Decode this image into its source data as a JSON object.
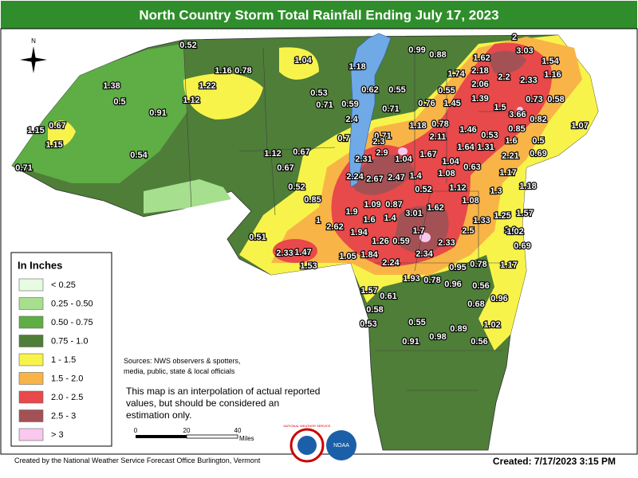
{
  "header": {
    "title": "North Country Storm Total Rainfall Ending July 17, 2023"
  },
  "map": {
    "compass": "N",
    "stations": [
      0.52,
      1.16,
      0.78,
      1.04,
      1.18,
      0.99,
      0.88,
      2,
      3.03,
      1.62,
      1.54,
      2.18,
      1.74,
      1.16,
      1.38,
      1.22,
      2.2,
      2.33,
      2.06,
      0.53,
      0.62,
      0.55,
      0.55,
      1.12,
      0.5,
      0.71,
      0.59,
      0.71,
      0.76,
      1.45,
      1.39,
      0.73,
      0.58,
      0.91,
      1.5,
      3.66,
      0.82,
      2.4,
      1.15,
      0.67,
      1.07,
      0.85,
      1.18,
      0.78,
      1.46,
      0.53,
      0.71,
      2.11,
      0.7,
      2.3,
      1.6,
      0.5,
      1.15,
      1.64,
      1.31,
      0.69,
      2.9,
      1.67,
      2.21,
      0.54,
      1.12,
      0.67,
      2.31,
      1.04,
      1.04,
      0.63,
      0.71,
      0.67,
      1.17,
      2.24,
      2.67,
      2.47,
      1.4,
      1.08,
      1.18,
      0.52,
      1.12,
      1.3,
      0.52,
      0.85,
      1.09,
      0.87,
      1.08,
      1.62,
      1.57,
      1.9,
      3.01,
      1.25,
      1,
      1.6,
      1.4,
      1.33,
      1.6,
      2.62,
      1.94,
      1.7,
      2.5,
      1.02,
      0.51,
      1.26,
      0.59,
      2.33,
      0.69,
      2.33,
      1.47,
      1.05,
      1.84,
      2.34,
      1.53,
      2.24,
      0.95,
      0.78,
      1.17,
      1.93,
      0.78,
      0.96,
      0.56,
      1.57,
      0.61,
      0.96,
      0.68,
      0.58,
      0.53,
      0.55,
      1.02,
      0.89,
      0.98,
      0.91,
      0.56
    ]
  },
  "legend": {
    "title": "In Inches",
    "items": [
      {
        "label": "< 0.25",
        "color": "#e6fbe0"
      },
      {
        "label": "0.25 - 0.50",
        "color": "#a6df8e"
      },
      {
        "label": "0.50 - 0.75",
        "color": "#5fad45"
      },
      {
        "label": "0.75 - 1.0",
        "color": "#4e7e37"
      },
      {
        "label": "1 - 1.5",
        "color": "#f7f34a"
      },
      {
        "label": "1.5 - 2.0",
        "color": "#f9b447"
      },
      {
        "label": "2.0 - 2.5",
        "color": "#e8494a"
      },
      {
        "label": "2.5 - 3",
        "color": "#a45155"
      },
      {
        "label": "> 3",
        "color": "#f8c8ee"
      }
    ]
  },
  "sources": [
    "Sources: NWS observers & spotters,",
    "media, public, state & local officials"
  ],
  "note": [
    "This map is an interpolation of actual reported",
    "values, but should be considered an",
    "estimation only."
  ],
  "scale": {
    "ticks": [
      "0",
      "20",
      "40"
    ],
    "unit": "Miles"
  },
  "logos": [
    "NATIONAL WEATHER SERVICE",
    "NOAA"
  ],
  "footer": {
    "credit": "Created by the National Weather Service Forecast Office Burlington, Vermont",
    "created": "Created: 7/17/2023 3:15 PM"
  }
}
